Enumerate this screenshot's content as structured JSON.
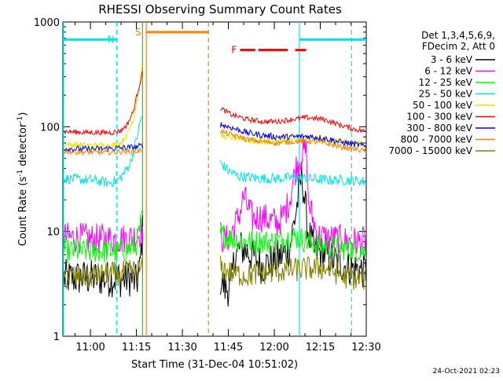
{
  "chart_data": {
    "type": "line",
    "title": "RHESSI Observing Summary Count Rates",
    "xlabel": "Start Time (31-Dec-04 10:51:02)",
    "ylabel_main": "Count Rate (s",
    "ylabel_sup1": "-1",
    "ylabel_mid": " detector",
    "ylabel_sup2": "-1",
    "ylabel_end": ")",
    "yscale": "log",
    "ylim": [
      1,
      1000
    ],
    "xlim": [
      "10:51",
      "12:30"
    ],
    "x_unit": "minutes after 10:51",
    "xlim_minutes": [
      0,
      99
    ],
    "xticks": [
      {
        "label": "11:00",
        "t": 9
      },
      {
        "label": "11:15",
        "t": 24
      },
      {
        "label": "11:30",
        "t": 39
      },
      {
        "label": "11:45",
        "t": 54
      },
      {
        "label": "12:00",
        "t": 69
      },
      {
        "label": "12:15",
        "t": 84
      },
      {
        "label": "12:30",
        "t": 99
      }
    ],
    "yticks": [
      {
        "label": "1",
        "v": 1
      },
      {
        "label": "10",
        "v": 10
      },
      {
        "label": "100",
        "v": 100
      },
      {
        "label": "1000",
        "v": 1000
      }
    ],
    "legend_header": [
      "Det 1,3,4,5,6,9,",
      "FDecim 2, Att 0"
    ],
    "legend_position": "right-outside",
    "timestamp": "24-Oct-2021 02:23",
    "flags": [
      {
        "label": "N",
        "color": "#00e5e5",
        "spans": [
          [
            0,
            17.6
          ],
          [
            77.2,
            99
          ]
        ],
        "level": 680
      },
      {
        "label": "S",
        "color": "#ff8000",
        "spans": [
          [
            27.2,
            47.5
          ]
        ],
        "level": 800
      },
      {
        "label": "F",
        "color": "#ff0000",
        "spans": [
          [
            57.8,
            62.8
          ],
          [
            63.8,
            73.4
          ],
          [
            75.8,
            79.4
          ]
        ],
        "level": 540
      }
    ],
    "vlines": [
      {
        "t": 0.2,
        "color": "#00e5e5",
        "style": "solid"
      },
      {
        "t": 17.6,
        "color": "#00e5e5",
        "style": "dashed"
      },
      {
        "t": 26.0,
        "color": "#00e000",
        "style": "solid"
      },
      {
        "t": 27.2,
        "color": "#ff8000",
        "style": "solid"
      },
      {
        "t": 47.5,
        "color": "#ff8000",
        "style": "dashed"
      },
      {
        "t": 77.2,
        "color": "#00e5e5",
        "style": "solid"
      },
      {
        "t": 94.2,
        "color": "#00e5e5",
        "style": "dashed"
      }
    ],
    "series": [
      {
        "name": "3 - 6 keV",
        "color": "#000000",
        "noise": 0.18,
        "points": [
          [
            0.3,
            3.6
          ],
          [
            10,
            3.6
          ],
          [
            20,
            3.5
          ],
          [
            22,
            3.6
          ],
          [
            23,
            3.4
          ],
          [
            24,
            3.2
          ],
          [
            25,
            4
          ],
          [
            26,
            10
          ],
          [
            51.5,
            3.5
          ],
          [
            53,
            2.8
          ],
          [
            55,
            3
          ],
          [
            56,
            6
          ],
          [
            58,
            7
          ],
          [
            60,
            6.5
          ],
          [
            63,
            5.5
          ],
          [
            65,
            4.6
          ],
          [
            67,
            5
          ],
          [
            70,
            5.5
          ],
          [
            72,
            6
          ],
          [
            74,
            7
          ],
          [
            76,
            15
          ],
          [
            78,
            35
          ],
          [
            80,
            10
          ],
          [
            82,
            6.5
          ],
          [
            86,
            6
          ],
          [
            90,
            5
          ],
          [
            94,
            4.5
          ],
          [
            99,
            4.2
          ]
        ]
      },
      {
        "name": "6 - 12 keV",
        "color": "#ff00ff",
        "noise": 0.15,
        "points": [
          [
            0.3,
            8.8
          ],
          [
            10,
            8.5
          ],
          [
            20,
            8.5
          ],
          [
            23,
            8.8
          ],
          [
            25,
            9.5
          ],
          [
            26,
            11
          ],
          [
            51.5,
            9
          ],
          [
            53,
            8
          ],
          [
            56,
            11
          ],
          [
            58,
            16
          ],
          [
            59,
            22
          ],
          [
            60,
            18
          ],
          [
            62,
            13
          ],
          [
            64,
            14
          ],
          [
            67,
            13
          ],
          [
            70,
            12
          ],
          [
            72,
            14
          ],
          [
            74,
            20
          ],
          [
            76,
            40
          ],
          [
            78,
            55
          ],
          [
            79.5,
            60
          ],
          [
            80,
            20
          ],
          [
            83,
            9
          ],
          [
            88,
            8.5
          ],
          [
            94,
            8
          ],
          [
            99,
            8
          ]
        ]
      },
      {
        "name": "12 - 25 keV",
        "color": "#00ff00",
        "noise": 0.12,
        "points": [
          [
            0.3,
            6.5
          ],
          [
            10,
            6.5
          ],
          [
            18,
            6.5
          ],
          [
            22,
            6.8
          ],
          [
            24,
            7.5
          ],
          [
            25.5,
            12
          ],
          [
            26,
            13
          ],
          [
            51.5,
            9.5
          ],
          [
            55,
            8.5
          ],
          [
            60,
            8
          ],
          [
            65,
            8
          ],
          [
            70,
            8
          ],
          [
            75,
            9
          ],
          [
            78,
            8.5
          ],
          [
            82,
            7.5
          ],
          [
            88,
            7
          ],
          [
            94,
            6.8
          ],
          [
            99,
            6.5
          ]
        ]
      },
      {
        "name": "25 - 50 keV",
        "color": "#00e5e5",
        "noise": 0.05,
        "points": [
          [
            0.3,
            32
          ],
          [
            10,
            31
          ],
          [
            15,
            29
          ],
          [
            18,
            31
          ],
          [
            20,
            36
          ],
          [
            22,
            45
          ],
          [
            24,
            75
          ],
          [
            25.5,
            120
          ],
          [
            26,
            130
          ],
          [
            51.5,
            45
          ],
          [
            54,
            38
          ],
          [
            57,
            34
          ],
          [
            60,
            33
          ],
          [
            65,
            32
          ],
          [
            70,
            32
          ],
          [
            75,
            33
          ],
          [
            80,
            32
          ],
          [
            86,
            31
          ],
          [
            92,
            31
          ],
          [
            99,
            30
          ]
        ]
      },
      {
        "name": "50 - 100 keV",
        "color": "#e5e500",
        "noise": 0.03,
        "points": [
          [
            0.3,
            68
          ],
          [
            10,
            66
          ],
          [
            16,
            66
          ],
          [
            19,
            70
          ],
          [
            21,
            85
          ],
          [
            23,
            120
          ],
          [
            25,
            250
          ],
          [
            26,
            400
          ],
          [
            51.5,
            82
          ],
          [
            54,
            80
          ],
          [
            58,
            76
          ],
          [
            62,
            73
          ],
          [
            66,
            72
          ],
          [
            70,
            73
          ],
          [
            75,
            74
          ],
          [
            80,
            76
          ],
          [
            85,
            75
          ],
          [
            90,
            72
          ],
          [
            95,
            70
          ],
          [
            99,
            68
          ]
        ]
      },
      {
        "name": "100 - 300 keV",
        "color": "#ff0000",
        "noise": 0.025,
        "points": [
          [
            0.3,
            90
          ],
          [
            8,
            88
          ],
          [
            16,
            88
          ],
          [
            19,
            92
          ],
          [
            21,
            105
          ],
          [
            23,
            140
          ],
          [
            24.5,
            220
          ],
          [
            26,
            330
          ],
          [
            51.5,
            150
          ],
          [
            55,
            130
          ],
          [
            60,
            118
          ],
          [
            65,
            112
          ],
          [
            70,
            112
          ],
          [
            75,
            118
          ],
          [
            80,
            122
          ],
          [
            85,
            118
          ],
          [
            90,
            105
          ],
          [
            95,
            95
          ],
          [
            99,
            90
          ]
        ]
      },
      {
        "name": "300 - 800 keV",
        "color": "#0000e5",
        "noise": 0.03,
        "points": [
          [
            0.3,
            62
          ],
          [
            8,
            61
          ],
          [
            16,
            62
          ],
          [
            20,
            63
          ],
          [
            24,
            64
          ],
          [
            26,
            66
          ],
          [
            51.5,
            105
          ],
          [
            55,
            98
          ],
          [
            60,
            88
          ],
          [
            65,
            83
          ],
          [
            70,
            80
          ],
          [
            75,
            80
          ],
          [
            80,
            81
          ],
          [
            85,
            78
          ],
          [
            90,
            72
          ],
          [
            95,
            68
          ],
          [
            99,
            65
          ]
        ]
      },
      {
        "name": "800 - 7000 keV",
        "color": "#ff8000",
        "noise": 0.025,
        "points": [
          [
            0.3,
            58
          ],
          [
            8,
            57
          ],
          [
            16,
            57
          ],
          [
            20,
            58
          ],
          [
            24,
            58
          ],
          [
            26,
            60
          ],
          [
            51.5,
            90
          ],
          [
            55,
            84
          ],
          [
            60,
            76
          ],
          [
            65,
            72
          ],
          [
            70,
            70
          ],
          [
            75,
            72
          ],
          [
            80,
            73
          ],
          [
            85,
            70
          ],
          [
            90,
            65
          ],
          [
            95,
            61
          ],
          [
            99,
            59
          ]
        ]
      },
      {
        "name": "7000 - 15000 keV",
        "color": "#808000",
        "noise": 0.12,
        "points": [
          [
            0.3,
            3.6
          ],
          [
            10,
            3.8
          ],
          [
            20,
            4
          ],
          [
            24,
            4.2
          ],
          [
            26,
            4.4
          ],
          [
            51.5,
            4.5
          ],
          [
            55,
            4
          ],
          [
            60,
            3.8
          ],
          [
            65,
            4
          ],
          [
            70,
            4.2
          ],
          [
            75,
            4.3
          ],
          [
            80,
            4.4
          ],
          [
            85,
            4.5
          ],
          [
            88,
            4.2
          ],
          [
            92,
            3.7
          ],
          [
            99,
            3.5
          ]
        ]
      }
    ]
  }
}
